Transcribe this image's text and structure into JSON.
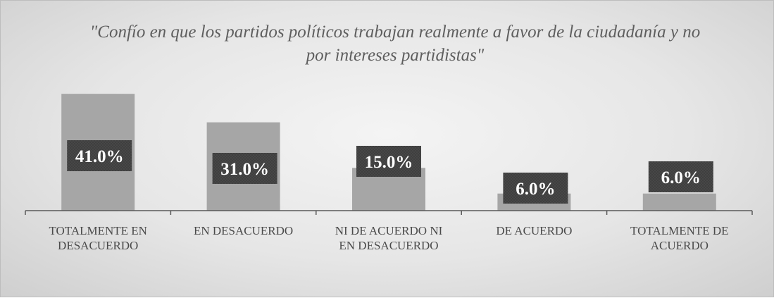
{
  "chart_data": {
    "type": "bar",
    "title": "\"Confío en que los partidos políticos trabajan realmente a favor de la ciudadanía y no por intereses partidistas\"",
    "categories": [
      [
        "TOTALMENTE EN",
        "DESACUERDO"
      ],
      [
        "EN DESACUERDO"
      ],
      [
        "NI DE ACUERDO NI",
        "EN DESACUERDO"
      ],
      [
        "DE ACUERDO"
      ],
      [
        "TOTALMENTE DE",
        "ACUERDO"
      ]
    ],
    "values": [
      41.0,
      31.0,
      15.0,
      6.0,
      6.0
    ],
    "data_labels": [
      "41.0%",
      "31.0%",
      "15.0%",
      "6.0%",
      "6.0%"
    ],
    "ylim": [
      0,
      45
    ],
    "grid": false,
    "legend": false,
    "colors": {
      "bar": "#a6a6a6",
      "label_box": "#3f3f3f",
      "label_text": "#ffffff",
      "axis": "#595959",
      "category_text": "#4a4a4a",
      "title_text": "#5e5e5e"
    }
  }
}
